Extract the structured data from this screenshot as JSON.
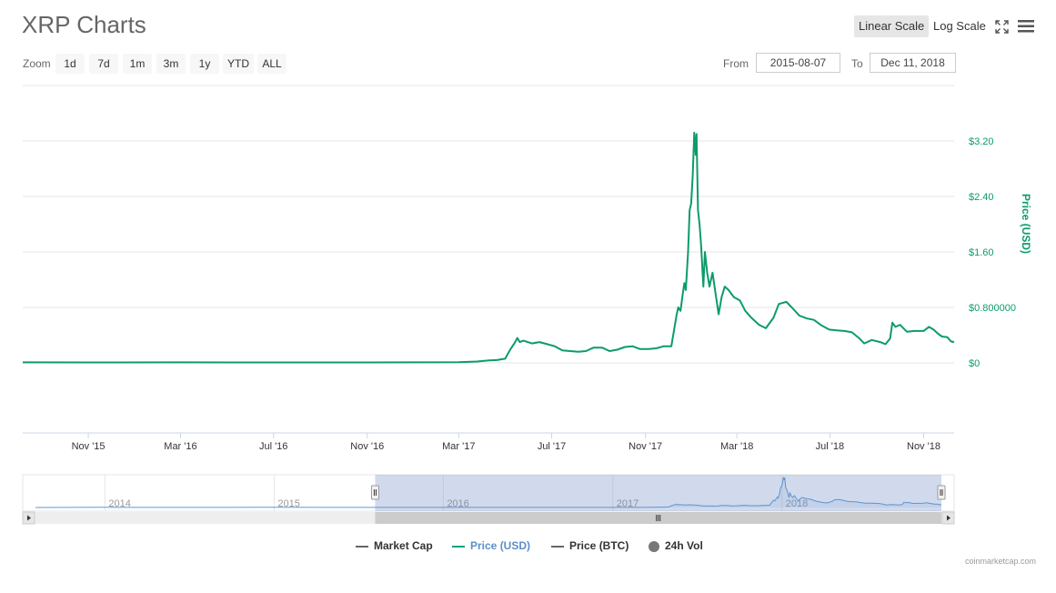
{
  "header": {
    "title": "XRP Charts",
    "linear_scale_label": "Linear Scale",
    "log_scale_label": "Log Scale",
    "fullscreen_icon": "expand-icon",
    "menu_icon": "hamburger-menu-icon"
  },
  "zoom": {
    "label": "Zoom",
    "buttons": [
      "1d",
      "7d",
      "1m",
      "3m",
      "1y",
      "YTD",
      "ALL"
    ]
  },
  "range": {
    "from_label": "From",
    "from_value": "2015-08-07",
    "to_label": "To",
    "to_value": "Dec 11, 2018"
  },
  "legend": {
    "items": [
      {
        "label": "Market Cap",
        "color": "#666666",
        "active": true
      },
      {
        "label": "Price (USD)",
        "color": "#16a085",
        "active": true,
        "highlighted": true
      },
      {
        "label": "Price (BTC)",
        "color": "#666666",
        "active": true
      },
      {
        "label": "24h Vol",
        "color": "#777777",
        "active": true
      }
    ]
  },
  "credit": "coinmarketcap.com",
  "colors": {
    "price_line": "#0c9b6d",
    "navigator_line": "#5b9bd5",
    "navigator_mask": "#c9d3ea",
    "grid": "#e6e6e6",
    "axis_text": "#333333",
    "y_axis_text": "#0c9b6d"
  },
  "chart_data": {
    "type": "line",
    "title": "",
    "xlabel": "",
    "ylabel": "Price (USD)",
    "x_range": [
      "2015-08-07",
      "2018-12-11"
    ],
    "ylim": [
      0,
      4.0
    ],
    "y_ticks": [
      0,
      0.8,
      1.6,
      2.4,
      3.2
    ],
    "y_tick_labels": [
      "$0",
      "$0.800000",
      "$1.60",
      "$2.40",
      "$3.20"
    ],
    "x_tick_labels": [
      "Nov '15",
      "Mar '16",
      "Jul '16",
      "Nov '16",
      "Mar '17",
      "Jul '17",
      "Nov '17",
      "Mar '18",
      "Jul '18",
      "Nov '18"
    ],
    "x_tick_dates": [
      "2015-11-01",
      "2016-03-01",
      "2016-07-01",
      "2016-11-01",
      "2017-03-01",
      "2017-07-01",
      "2017-11-01",
      "2018-03-01",
      "2018-07-01",
      "2018-11-01"
    ],
    "grid": true,
    "series": [
      {
        "name": "Price (USD)",
        "color": "#0c9b6d",
        "points": [
          [
            "2015-08-07",
            0.008
          ],
          [
            "2015-11-01",
            0.006
          ],
          [
            "2016-03-01",
            0.008
          ],
          [
            "2016-07-01",
            0.006
          ],
          [
            "2016-11-01",
            0.007
          ],
          [
            "2017-03-01",
            0.01
          ],
          [
            "2017-03-25",
            0.02
          ],
          [
            "2017-04-10",
            0.035
          ],
          [
            "2017-04-20",
            0.04
          ],
          [
            "2017-05-01",
            0.06
          ],
          [
            "2017-05-08",
            0.2
          ],
          [
            "2017-05-13",
            0.28
          ],
          [
            "2017-05-17",
            0.36
          ],
          [
            "2017-05-20",
            0.3
          ],
          [
            "2017-05-25",
            0.32
          ],
          [
            "2017-06-05",
            0.28
          ],
          [
            "2017-06-15",
            0.3
          ],
          [
            "2017-06-25",
            0.27
          ],
          [
            "2017-07-05",
            0.24
          ],
          [
            "2017-07-15",
            0.18
          ],
          [
            "2017-07-25",
            0.17
          ],
          [
            "2017-08-05",
            0.16
          ],
          [
            "2017-08-15",
            0.17
          ],
          [
            "2017-08-25",
            0.22
          ],
          [
            "2017-09-05",
            0.22
          ],
          [
            "2017-09-15",
            0.17
          ],
          [
            "2017-09-25",
            0.19
          ],
          [
            "2017-10-05",
            0.23
          ],
          [
            "2017-10-15",
            0.24
          ],
          [
            "2017-10-25",
            0.2
          ],
          [
            "2017-11-05",
            0.2
          ],
          [
            "2017-11-15",
            0.21
          ],
          [
            "2017-11-25",
            0.24
          ],
          [
            "2017-12-05",
            0.24
          ],
          [
            "2017-12-12",
            0.7
          ],
          [
            "2017-12-14",
            0.8
          ],
          [
            "2017-12-17",
            0.75
          ],
          [
            "2017-12-20",
            1.0
          ],
          [
            "2017-12-22",
            1.15
          ],
          [
            "2017-12-24",
            1.05
          ],
          [
            "2017-12-27",
            1.6
          ],
          [
            "2017-12-29",
            2.2
          ],
          [
            "2017-12-31",
            2.3
          ],
          [
            "2018-01-02",
            2.7
          ],
          [
            "2018-01-04",
            3.32
          ],
          [
            "2018-01-06",
            3.0
          ],
          [
            "2018-01-07",
            3.3
          ],
          [
            "2018-01-09",
            2.2
          ],
          [
            "2018-01-11",
            2.0
          ],
          [
            "2018-01-13",
            1.7
          ],
          [
            "2018-01-16",
            1.1
          ],
          [
            "2018-01-18",
            1.6
          ],
          [
            "2018-01-21",
            1.3
          ],
          [
            "2018-01-24",
            1.1
          ],
          [
            "2018-01-28",
            1.3
          ],
          [
            "2018-02-01",
            1.0
          ],
          [
            "2018-02-05",
            0.7
          ],
          [
            "2018-02-09",
            0.95
          ],
          [
            "2018-02-13",
            1.1
          ],
          [
            "2018-02-18",
            1.05
          ],
          [
            "2018-02-25",
            0.95
          ],
          [
            "2018-03-05",
            0.9
          ],
          [
            "2018-03-12",
            0.75
          ],
          [
            "2018-03-20",
            0.65
          ],
          [
            "2018-03-30",
            0.55
          ],
          [
            "2018-04-08",
            0.5
          ],
          [
            "2018-04-18",
            0.65
          ],
          [
            "2018-04-25",
            0.85
          ],
          [
            "2018-05-05",
            0.88
          ],
          [
            "2018-05-12",
            0.8
          ],
          [
            "2018-05-22",
            0.68
          ],
          [
            "2018-06-01",
            0.64
          ],
          [
            "2018-06-10",
            0.62
          ],
          [
            "2018-06-20",
            0.54
          ],
          [
            "2018-06-30",
            0.48
          ],
          [
            "2018-07-10",
            0.47
          ],
          [
            "2018-07-20",
            0.46
          ],
          [
            "2018-07-30",
            0.44
          ],
          [
            "2018-08-08",
            0.36
          ],
          [
            "2018-08-15",
            0.28
          ],
          [
            "2018-08-25",
            0.33
          ],
          [
            "2018-09-05",
            0.3
          ],
          [
            "2018-09-12",
            0.27
          ],
          [
            "2018-09-18",
            0.35
          ],
          [
            "2018-09-21",
            0.58
          ],
          [
            "2018-09-25",
            0.52
          ],
          [
            "2018-10-01",
            0.55
          ],
          [
            "2018-10-10",
            0.45
          ],
          [
            "2018-10-20",
            0.46
          ],
          [
            "2018-11-01",
            0.46
          ],
          [
            "2018-11-08",
            0.52
          ],
          [
            "2018-11-14",
            0.48
          ],
          [
            "2018-11-20",
            0.42
          ],
          [
            "2018-11-25",
            0.38
          ],
          [
            "2018-12-02",
            0.37
          ],
          [
            "2018-12-07",
            0.31
          ],
          [
            "2018-12-11",
            0.3
          ]
        ]
      }
    ],
    "navigator": {
      "x_range": [
        "2013-08-04",
        "2018-12-11"
      ],
      "tick_labels": [
        "2014",
        "2015",
        "2016",
        "2017",
        "2018"
      ],
      "tick_dates": [
        "2014-01-01",
        "2015-01-01",
        "2016-01-01",
        "2017-01-01",
        "2018-01-01"
      ],
      "selected_range": [
        "2015-08-07",
        "2018-12-11"
      ],
      "early_points": [
        [
          "2013-08-04",
          0.005
        ],
        [
          "2014-01-01",
          0.024
        ],
        [
          "2014-06-01",
          0.006
        ],
        [
          "2014-12-01",
          0.024
        ],
        [
          "2015-05-01",
          0.009
        ],
        [
          "2015-08-07",
          0.008
        ]
      ]
    }
  }
}
